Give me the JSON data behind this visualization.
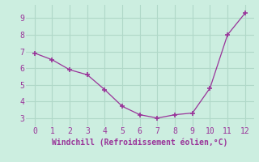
{
  "x": [
    0,
    1,
    2,
    3,
    4,
    5,
    6,
    7,
    8,
    9,
    10,
    11,
    12
  ],
  "y": [
    6.9,
    6.5,
    5.9,
    5.6,
    4.7,
    3.7,
    3.2,
    3.0,
    3.2,
    3.3,
    4.8,
    8.0,
    9.3
  ],
  "line_color": "#993399",
  "marker": "+",
  "marker_size": 4,
  "marker_linewidth": 1.2,
  "line_width": 0.9,
  "xlabel": "Windchill (Refroidissement éolien,°C)",
  "xlabel_color": "#993399",
  "xlabel_fontsize": 7,
  "yticks": [
    3,
    4,
    5,
    6,
    7,
    8,
    9
  ],
  "xlim": [
    -0.5,
    12.5
  ],
  "ylim": [
    2.5,
    9.8
  ],
  "background_color": "#cceee0",
  "grid_color": "#b0d8c8",
  "tick_color": "#993399",
  "tick_labelsize": 7,
  "xticks": [
    0,
    1,
    2,
    3,
    4,
    5,
    6,
    7,
    8,
    9,
    10,
    11,
    12
  ]
}
